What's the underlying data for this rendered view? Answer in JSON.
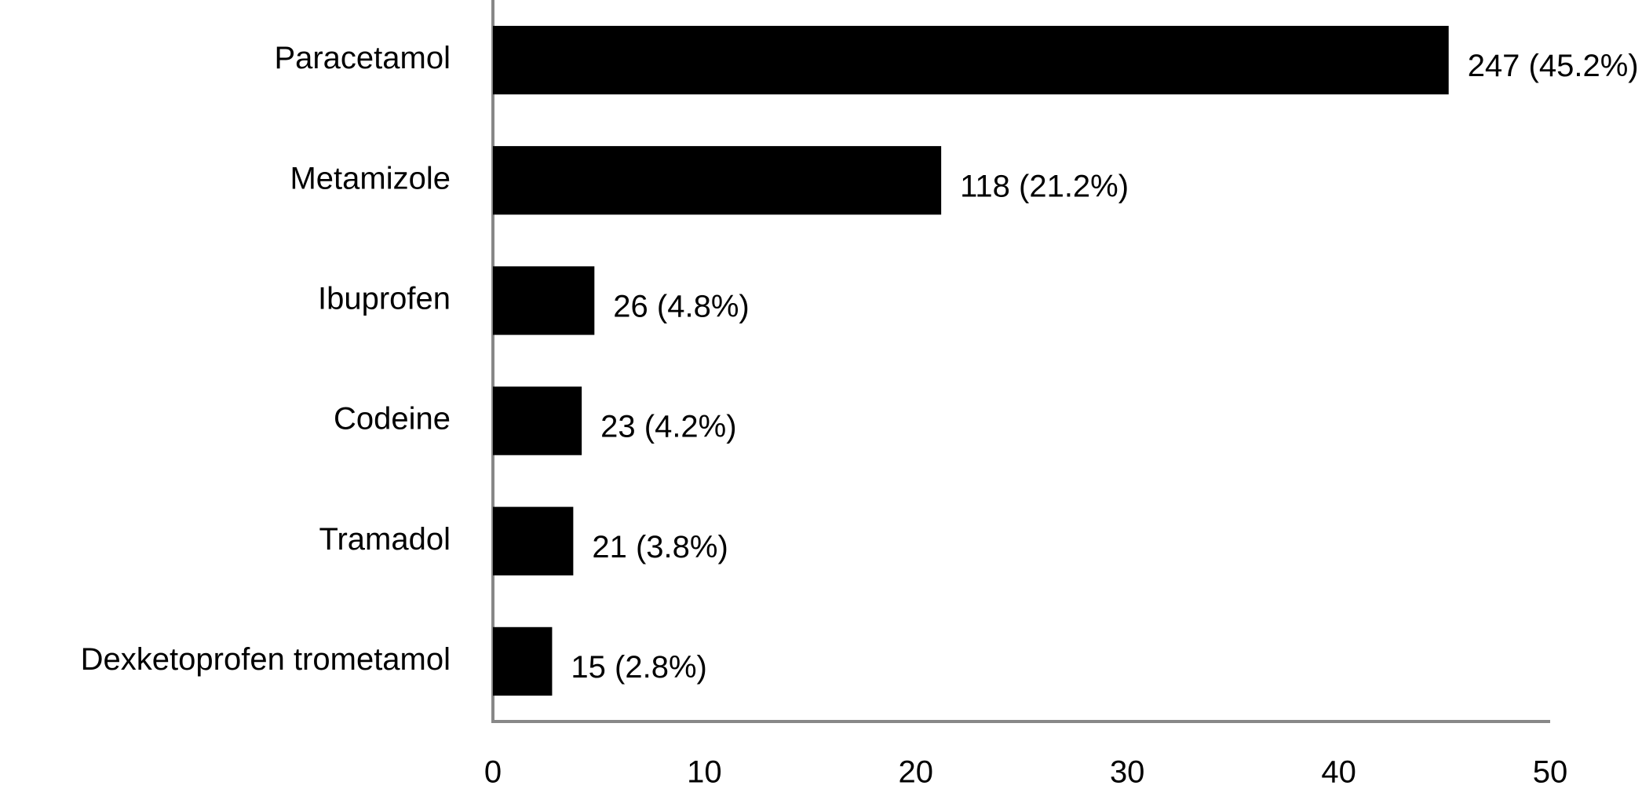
{
  "chart_data": {
    "type": "hbar",
    "categories": [
      "Paracetamol",
      "Metamizole",
      "Ibuprofen",
      "Codeine",
      "Tramadol",
      "Dexketoprofen trometamol"
    ],
    "values": [
      45.2,
      21.2,
      4.8,
      4.2,
      3.8,
      2.8
    ],
    "value_labels": [
      "247 (45.2%)",
      "118 (21.2%)",
      "26 (4.8%)",
      "23 (4.2%)",
      "21 (3.8%)",
      "15 (2.8%)"
    ],
    "color": "#000000",
    "xlim": [
      0,
      50
    ],
    "xticks": [
      0,
      10,
      20,
      30,
      40,
      50
    ],
    "grid": false
  }
}
